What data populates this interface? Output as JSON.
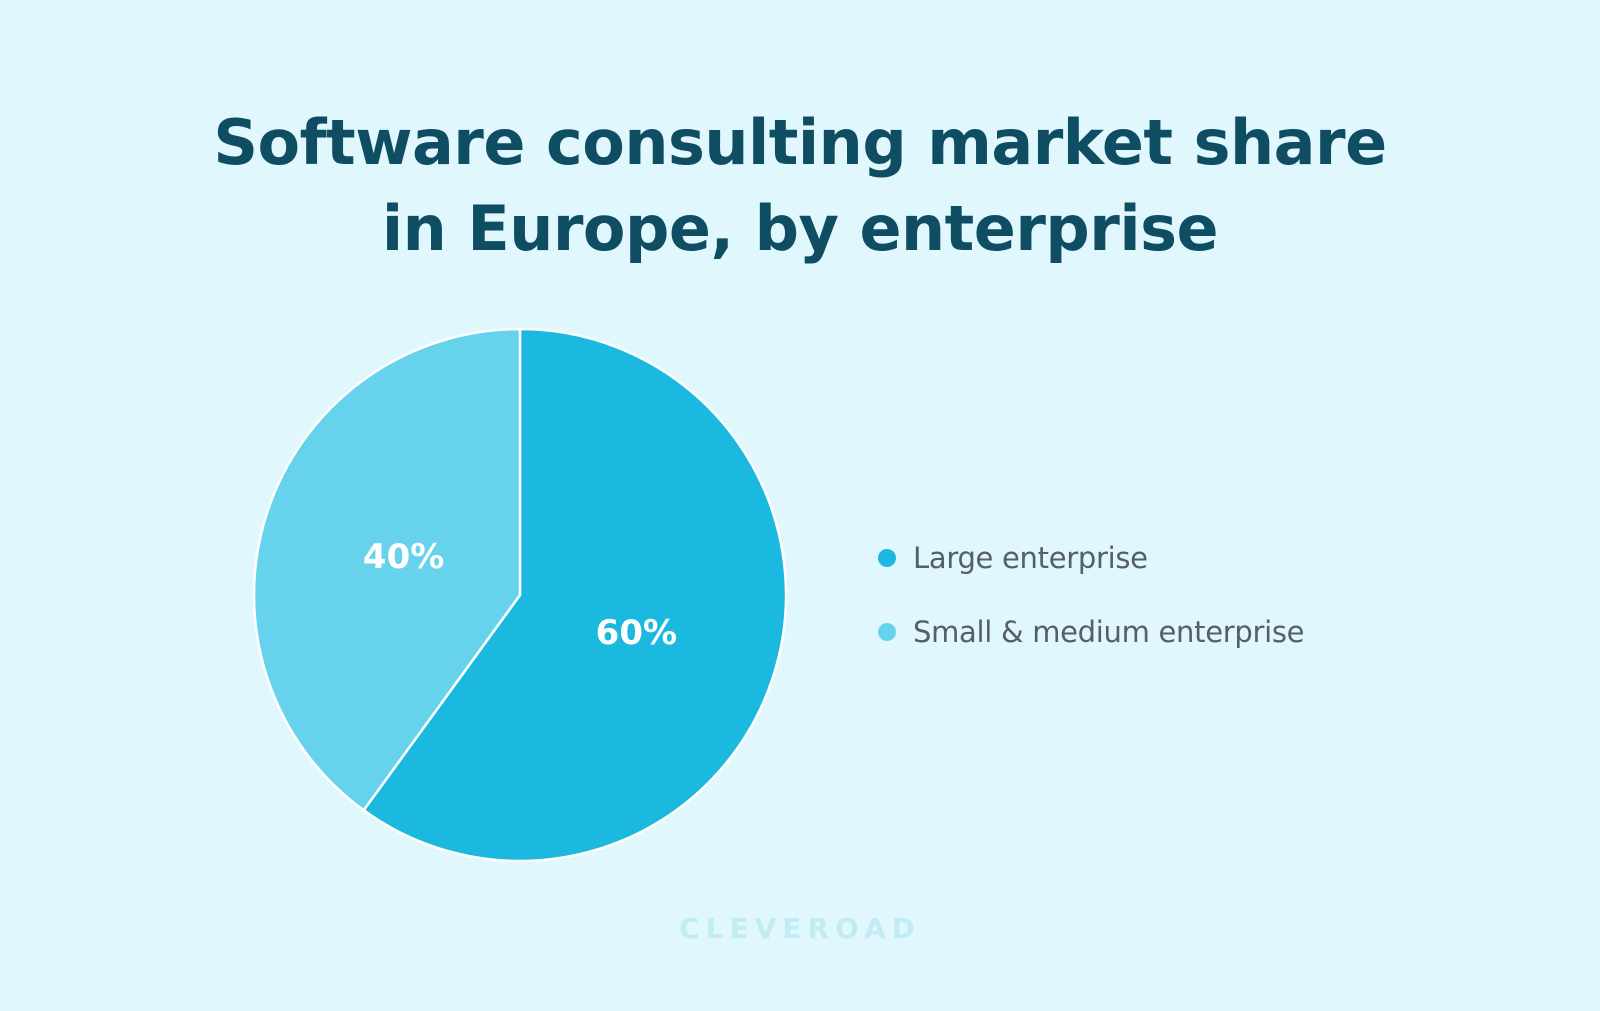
{
  "title": {
    "line1": "Software consulting market share",
    "line2": "in Europe, by enterprise"
  },
  "chart_data": {
    "type": "pie",
    "title": "Software consulting market share in Europe, by enterprise",
    "slices": [
      {
        "name": "Large enterprise",
        "value": 60,
        "label": "60%",
        "color": "#1bb9e0"
      },
      {
        "name": "Small & medium enterprise",
        "value": 40,
        "label": "40%",
        "color": "#66d2eb"
      }
    ],
    "legend_placement": "right"
  },
  "legend": {
    "items": [
      {
        "label": "Large enterprise",
        "color": "#1bb9e0"
      },
      {
        "label": "Small & medium enterprise",
        "color": "#66d2eb"
      }
    ]
  },
  "watermark": {
    "text": "CLEVEROAD"
  },
  "colors": {
    "background": "#e0f8fd",
    "title": "#0f4d63",
    "legend_text": "#555f66"
  }
}
